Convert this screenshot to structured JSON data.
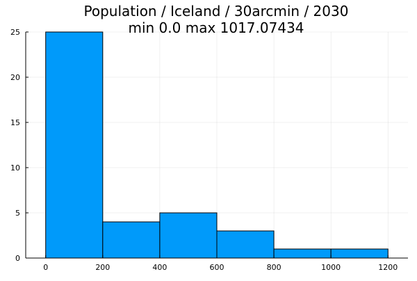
{
  "chart_data": {
    "type": "bar",
    "title": "Population / Iceland / 30arcmin / 2030",
    "subtitle": "min 0.0  max 1017.07434",
    "xlabel": "",
    "ylabel": "",
    "bins": [
      {
        "x0": 0,
        "x1": 200,
        "count": 25
      },
      {
        "x0": 200,
        "x1": 400,
        "count": 4
      },
      {
        "x0": 400,
        "x1": 600,
        "count": 5
      },
      {
        "x0": 600,
        "x1": 800,
        "count": 3
      },
      {
        "x0": 800,
        "x1": 1000,
        "count": 1
      },
      {
        "x0": 1000,
        "x1": 1200,
        "count": 1
      }
    ],
    "xlim": [
      -70,
      1270
    ],
    "ylim": [
      0,
      25
    ],
    "xticks": [
      "0",
      "200",
      "400",
      "600",
      "800",
      "1000",
      "1200"
    ],
    "yticks": [
      "0",
      "5",
      "10",
      "15",
      "20",
      "25"
    ],
    "grid": true,
    "legend": "none",
    "bar_color": "#009AFA",
    "edge_color": "#000000"
  }
}
